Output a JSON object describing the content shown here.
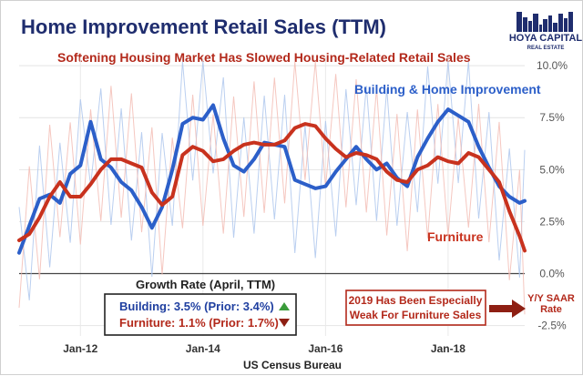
{
  "chart_data": {
    "type": "line",
    "title": "Home Improvement Retail Sales (TTM)",
    "subtitle": "Softening Housing Market Has Slowed Housing-Related Retail Sales",
    "source": "US Census Bureau",
    "y_axis_title": "Y/Y SAAR Rate",
    "y_ticks": [
      "10.0%",
      "7.5%",
      "5.0%",
      "2.5%",
      "0.0%",
      "-2.5%"
    ],
    "y_tick_values": [
      10,
      7.5,
      5,
      2.5,
      0,
      -2.5
    ],
    "ylim": [
      -3,
      10.4
    ],
    "x_range": [
      "2011-01",
      "2019-04"
    ],
    "x_ticks": [
      {
        "label": "Jan-12",
        "date": "2012-01"
      },
      {
        "label": "Jan-14",
        "date": "2014-01"
      },
      {
        "label": "Jan-16",
        "date": "2016-01"
      },
      {
        "label": "Jan-18",
        "date": "2018-01"
      }
    ],
    "grid": true,
    "series": [
      {
        "name": "Building & Home Improvement",
        "color": "#2c5fc9",
        "monthly_color": "#a9c3ec",
        "points": [
          [
            "2011-01",
            1.0
          ],
          [
            "2011-03",
            2.3
          ],
          [
            "2011-05",
            3.6
          ],
          [
            "2011-07",
            3.8
          ],
          [
            "2011-09",
            3.4
          ],
          [
            "2011-11",
            4.8
          ],
          [
            "2012-01",
            5.2
          ],
          [
            "2012-03",
            7.3
          ],
          [
            "2012-05",
            5.5
          ],
          [
            "2012-07",
            5.1
          ],
          [
            "2012-09",
            4.4
          ],
          [
            "2012-11",
            4.0
          ],
          [
            "2013-01",
            3.2
          ],
          [
            "2013-03",
            2.2
          ],
          [
            "2013-05",
            3.2
          ],
          [
            "2013-07",
            5.0
          ],
          [
            "2013-09",
            7.2
          ],
          [
            "2013-11",
            7.5
          ],
          [
            "2014-01",
            7.4
          ],
          [
            "2014-03",
            8.1
          ],
          [
            "2014-05",
            6.5
          ],
          [
            "2014-07",
            5.2
          ],
          [
            "2014-09",
            4.9
          ],
          [
            "2014-11",
            5.5
          ],
          [
            "2015-01",
            6.3
          ],
          [
            "2015-03",
            6.2
          ],
          [
            "2015-05",
            6.1
          ],
          [
            "2015-07",
            4.5
          ],
          [
            "2015-09",
            4.3
          ],
          [
            "2015-11",
            4.1
          ],
          [
            "2016-01",
            4.2
          ],
          [
            "2016-03",
            4.9
          ],
          [
            "2016-05",
            5.5
          ],
          [
            "2016-07",
            6.1
          ],
          [
            "2016-09",
            5.5
          ],
          [
            "2016-11",
            5.0
          ],
          [
            "2017-01",
            5.3
          ],
          [
            "2017-03",
            4.6
          ],
          [
            "2017-05",
            4.2
          ],
          [
            "2017-07",
            5.6
          ],
          [
            "2017-09",
            6.5
          ],
          [
            "2017-11",
            7.3
          ],
          [
            "2018-01",
            7.9
          ],
          [
            "2018-03",
            7.6
          ],
          [
            "2018-05",
            7.3
          ],
          [
            "2018-07",
            6.1
          ],
          [
            "2018-09",
            5.1
          ],
          [
            "2018-11",
            4.2
          ],
          [
            "2019-01",
            3.7
          ],
          [
            "2019-03",
            3.4
          ],
          [
            "2019-04",
            3.5
          ]
        ]
      },
      {
        "name": "Furniture",
        "color": "#c8321e",
        "monthly_color": "#f2b9b0",
        "points": [
          [
            "2011-01",
            1.6
          ],
          [
            "2011-03",
            1.9
          ],
          [
            "2011-05",
            2.7
          ],
          [
            "2011-07",
            3.7
          ],
          [
            "2011-09",
            4.4
          ],
          [
            "2011-11",
            3.7
          ],
          [
            "2012-01",
            3.7
          ],
          [
            "2012-03",
            4.3
          ],
          [
            "2012-05",
            5.0
          ],
          [
            "2012-07",
            5.5
          ],
          [
            "2012-09",
            5.5
          ],
          [
            "2012-11",
            5.3
          ],
          [
            "2013-01",
            5.1
          ],
          [
            "2013-03",
            3.9
          ],
          [
            "2013-05",
            3.3
          ],
          [
            "2013-07",
            3.7
          ],
          [
            "2013-09",
            5.7
          ],
          [
            "2013-11",
            6.1
          ],
          [
            "2014-01",
            5.9
          ],
          [
            "2014-03",
            5.4
          ],
          [
            "2014-05",
            5.5
          ],
          [
            "2014-07",
            5.9
          ],
          [
            "2014-09",
            6.2
          ],
          [
            "2014-11",
            6.3
          ],
          [
            "2015-01",
            6.2
          ],
          [
            "2015-03",
            6.2
          ],
          [
            "2015-05",
            6.4
          ],
          [
            "2015-07",
            7.0
          ],
          [
            "2015-09",
            7.2
          ],
          [
            "2015-11",
            7.1
          ],
          [
            "2016-01",
            6.5
          ],
          [
            "2016-03",
            6.0
          ],
          [
            "2016-05",
            5.6
          ],
          [
            "2016-07",
            5.8
          ],
          [
            "2016-09",
            5.7
          ],
          [
            "2016-11",
            5.5
          ],
          [
            "2017-01",
            4.9
          ],
          [
            "2017-03",
            4.5
          ],
          [
            "2017-05",
            4.4
          ],
          [
            "2017-07",
            5.0
          ],
          [
            "2017-09",
            5.2
          ],
          [
            "2017-11",
            5.6
          ],
          [
            "2018-01",
            5.4
          ],
          [
            "2018-03",
            5.3
          ],
          [
            "2018-05",
            5.8
          ],
          [
            "2018-07",
            5.6
          ],
          [
            "2018-09",
            5.0
          ],
          [
            "2018-11",
            4.4
          ],
          [
            "2019-01",
            3.0
          ],
          [
            "2019-03",
            1.8
          ],
          [
            "2019-04",
            1.1
          ]
        ]
      }
    ],
    "growth_box": {
      "title": "Growth Rate (April, TTM)",
      "rows": [
        {
          "text": "Building: 3.5% (Prior: 3.4%)",
          "color": "#1f3fa0",
          "direction": "up",
          "arrow_color": "#3a9b3a"
        },
        {
          "text": "Furniture: 1.1% (Prior: 1.7%)",
          "color": "#b3291b",
          "direction": "down",
          "arrow_color": "#8e1f13"
        }
      ]
    },
    "callout": {
      "line1": "2019 Has Been Especially",
      "line2": "Weak For Furniture Sales"
    }
  },
  "logo": {
    "line1": "HOYA CAPITAL",
    "line2": "REAL ESTATE",
    "color": "#1f2d6e"
  }
}
